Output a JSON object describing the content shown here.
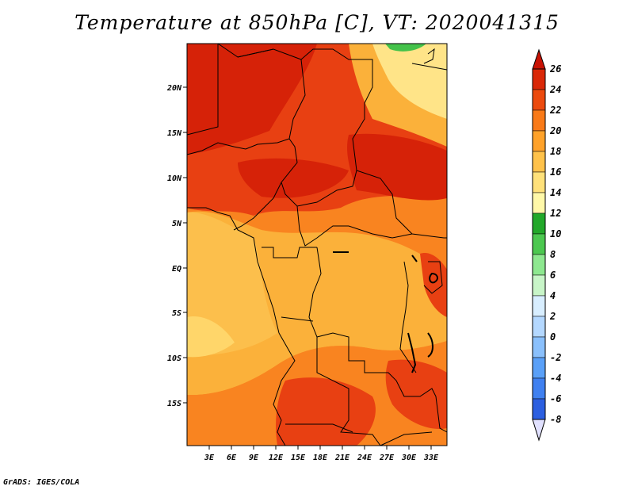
{
  "title": "Temperature at 850hPa [C], VT: 2020041315",
  "credit": "GrADS: IGES/COLA",
  "map": {
    "lat_labels": [
      "20N",
      "15N",
      "10N",
      "5N",
      "EQ",
      "5S",
      "10S",
      "15S"
    ],
    "lon_labels": [
      "3E",
      "6E",
      "9E",
      "12E",
      "15E",
      "18E",
      "21E",
      "24E",
      "27E",
      "30E",
      "33E"
    ]
  },
  "colorbar": {
    "labels": [
      "26",
      "24",
      "22",
      "20",
      "18",
      "16",
      "14",
      "12",
      "10",
      "8",
      "6",
      "4",
      "2",
      "0",
      "-2",
      "-4",
      "-6",
      "-8"
    ],
    "colors": [
      "#ffffff",
      "#e1e1ff",
      "#0c0c8c",
      "#1a3dc8",
      "#2c5fe0",
      "#3f80f0",
      "#5aa0f8",
      "#8ac0fc",
      "#b4d8ff",
      "#d8eeff",
      "#c8f5c8",
      "#8ee890",
      "#4cc850",
      "#22a82a",
      "#fff8a8",
      "#ffe17a",
      "#ffc24a",
      "#ffa22a",
      "#f97a18",
      "#ec4a0e",
      "#da2808",
      "#c81204"
    ]
  }
}
